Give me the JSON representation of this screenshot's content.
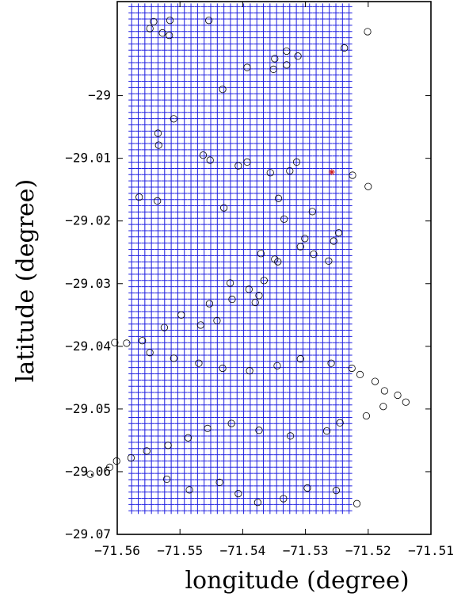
{
  "chart_data": {
    "type": "scatter",
    "xlabel": "longitude (degree)",
    "ylabel": "latitude (degree)",
    "xlim": [
      -71.56,
      -71.51
    ],
    "ylim": [
      -29.07,
      -28.985
    ],
    "xticks": [
      -71.56,
      -71.55,
      -71.54,
      -71.53,
      -71.52,
      -71.51
    ],
    "xtick_labels": [
      "−71.56",
      "−71.55",
      "−71.54",
      "−71.53",
      "−71.52",
      "−71.51"
    ],
    "yticks": [
      -29.0,
      -29.01,
      -29.02,
      -29.03,
      -29.04,
      -29.05,
      -29.06,
      -29.07
    ],
    "ytick_labels": [
      "−29",
      "−29.01",
      "−29.02",
      "−29.03",
      "−29.04",
      "−29.05",
      "−29.06",
      "−29.07"
    ],
    "grid": false,
    "series": [
      {
        "marker": "plus",
        "color": "#1f1fe0",
        "grid_points": {
          "x_start": -71.5577,
          "x_step": 0.00105,
          "x_count": 34,
          "y_start": -28.9858,
          "y_step": -0.000993,
          "y_count": 82
        }
      },
      {
        "marker": "circle",
        "color": "#000000",
        "points": [
          [
            -71.5516,
            -28.988
          ],
          [
            -71.5548,
            -28.9893
          ],
          [
            -71.5542,
            -28.9882
          ],
          [
            -71.5528,
            -28.99
          ],
          [
            -71.5517,
            -28.9904
          ],
          [
            -71.5454,
            -28.988
          ],
          [
            -71.5201,
            -28.9898
          ],
          [
            -71.5238,
            -28.9924
          ],
          [
            -71.5312,
            -28.9937
          ],
          [
            -71.533,
            -28.9929
          ],
          [
            -71.5349,
            -28.9941
          ],
          [
            -71.5351,
            -28.9958
          ],
          [
            -71.5393,
            -28.9955
          ],
          [
            -71.533,
            -28.9951
          ],
          [
            -71.5432,
            -28.999
          ],
          [
            -71.551,
            -29.0037
          ],
          [
            -71.5535,
            -29.006
          ],
          [
            -71.5534,
            -29.0079
          ],
          [
            -71.5463,
            -29.0095
          ],
          [
            -71.5452,
            -29.0103
          ],
          [
            -71.5356,
            -29.0123
          ],
          [
            -71.5407,
            -29.0112
          ],
          [
            -71.5393,
            -29.0106
          ],
          [
            -71.5314,
            -29.0106
          ],
          [
            -71.5325,
            -29.012
          ],
          [
            -71.5225,
            -29.0127
          ],
          [
            -71.52,
            -29.0145
          ],
          [
            -71.5565,
            -29.0162
          ],
          [
            -71.5536,
            -29.0168
          ],
          [
            -71.543,
            -29.0179
          ],
          [
            -71.5343,
            -29.0164
          ],
          [
            -71.5289,
            -29.0185
          ],
          [
            -71.5334,
            -29.0197
          ],
          [
            -71.5301,
            -29.0228
          ],
          [
            -71.5308,
            -29.0241
          ],
          [
            -71.5247,
            -29.0219
          ],
          [
            -71.5255,
            -29.0232
          ],
          [
            -71.5287,
            -29.0253
          ],
          [
            -71.5263,
            -29.0264
          ],
          [
            -71.5349,
            -29.0261
          ],
          [
            -71.5371,
            -29.0252
          ],
          [
            -71.5344,
            -29.0265
          ],
          [
            -71.5366,
            -29.0295
          ],
          [
            -71.5374,
            -29.0319
          ],
          [
            -71.538,
            -29.033
          ],
          [
            -71.542,
            -29.0299
          ],
          [
            -71.539,
            -29.0309
          ],
          [
            -71.5417,
            -29.0325
          ],
          [
            -71.5453,
            -29.0332
          ],
          [
            -71.5498,
            -29.035
          ],
          [
            -71.5525,
            -29.037
          ],
          [
            -71.5467,
            -29.0366
          ],
          [
            -71.5441,
            -29.0359
          ],
          [
            -71.556,
            -29.0391
          ],
          [
            -71.5604,
            -29.0394
          ],
          [
            -71.5585,
            -29.0395
          ],
          [
            -71.5548,
            -29.041
          ],
          [
            -71.551,
            -29.0419
          ],
          [
            -71.547,
            -29.0427
          ],
          [
            -71.5432,
            -29.0435
          ],
          [
            -71.5389,
            -29.0439
          ],
          [
            -71.5345,
            -29.0431
          ],
          [
            -71.5308,
            -29.042
          ],
          [
            -71.5259,
            -29.0427
          ],
          [
            -71.5226,
            -29.0435
          ],
          [
            -71.5213,
            -29.0445
          ],
          [
            -71.5189,
            -29.0456
          ],
          [
            -71.5174,
            -29.0471
          ],
          [
            -71.5153,
            -29.0478
          ],
          [
            -71.514,
            -29.0489
          ],
          [
            -71.5176,
            -29.0496
          ],
          [
            -71.5203,
            -29.0511
          ],
          [
            -71.5245,
            -29.0522
          ],
          [
            -71.5266,
            -29.0535
          ],
          [
            -71.5324,
            -29.0543
          ],
          [
            -71.5374,
            -29.0534
          ],
          [
            -71.5418,
            -29.0523
          ],
          [
            -71.5456,
            -29.0531
          ],
          [
            -71.5487,
            -29.0546
          ],
          [
            -71.5519,
            -29.0558
          ],
          [
            -71.5553,
            -29.0567
          ],
          [
            -71.5578,
            -29.0578
          ],
          [
            -71.5601,
            -29.0583
          ],
          [
            -71.5612,
            -29.0593
          ],
          [
            -71.5643,
            -29.0604
          ],
          [
            -71.5521,
            -29.0612
          ],
          [
            -71.5485,
            -29.0629
          ],
          [
            -71.5437,
            -29.0617
          ],
          [
            -71.5407,
            -29.0635
          ],
          [
            -71.5376,
            -29.0649
          ],
          [
            -71.5335,
            -29.0643
          ],
          [
            -71.5297,
            -29.0626
          ],
          [
            -71.5251,
            -29.063
          ],
          [
            -71.5218,
            -29.0651
          ]
        ]
      },
      {
        "marker": "star",
        "color": "#d01818",
        "points": [
          [
            -71.5258,
            -29.0122
          ]
        ]
      }
    ]
  }
}
